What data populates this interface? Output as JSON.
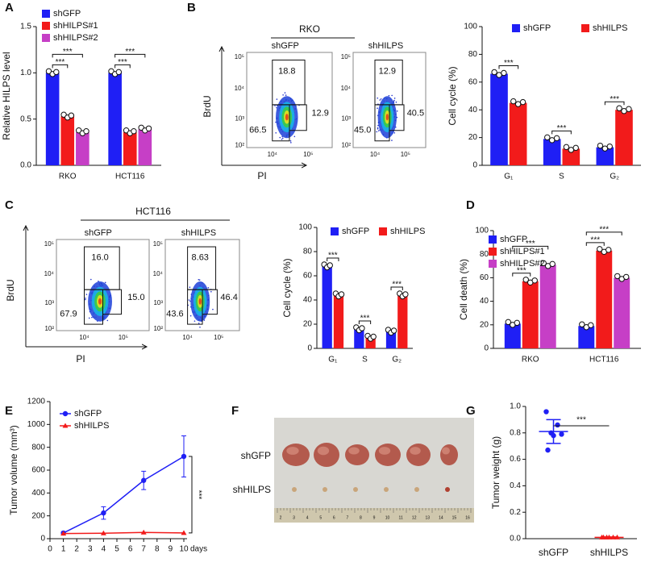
{
  "figure": {
    "panel_labels": [
      "A",
      "B",
      "C",
      "D",
      "E",
      "F",
      "G"
    ],
    "flow": [
      {
        "title": "RKO",
        "ylabel": "BrdU",
        "xlabel": "PI",
        "yticks": [
          "10⁵",
          "10⁴",
          "10³",
          "10²"
        ],
        "xticks": [
          "10⁴",
          "10⁵"
        ],
        "plots": [
          {
            "label": "shGFP",
            "upper": "18.8",
            "right": "12.9",
            "left": "66.5"
          },
          {
            "label": "shHILPS",
            "upper": "12.9",
            "right": "40.5",
            "left": "45.0"
          }
        ]
      },
      {
        "title": "HCT116",
        "ylabel": "BrdU",
        "xlabel": "PI",
        "yticks": [
          "10⁵",
          "10⁴",
          "10³",
          "10²"
        ],
        "xticks": [
          "10⁴",
          "10⁵"
        ],
        "plots": [
          {
            "label": "shGFP",
            "upper": "16.0",
            "right": "15.0",
            "left": "67.9"
          },
          {
            "label": "shHILPS",
            "upper": "8.63",
            "right": "46.4",
            "left": "43.6"
          }
        ]
      }
    ],
    "photo": {
      "labels": [
        "shGFP",
        "shHILPS"
      ],
      "ruler": [
        "2",
        "3",
        "4",
        "5",
        "6",
        "7",
        "8",
        "9",
        "10",
        "11",
        "12",
        "13",
        "14",
        "15",
        "16"
      ]
    }
  },
  "chart_data": [
    {
      "type": "bar",
      "ylabel": "Relative HILPS level",
      "categories": [
        "RKO",
        "HCT116"
      ],
      "series": [
        {
          "name": "shGFP",
          "color": "#1f1ff5",
          "values": [
            1,
            1
          ]
        },
        {
          "name": "shHILPS#1",
          "color": "#f21b1b",
          "values": [
            0.53,
            0.36
          ]
        },
        {
          "name": "shHILPS#2",
          "color": "#c63fc6",
          "values": [
            0.36,
            0.39
          ]
        }
      ],
      "ylim": [
        0,
        1.5
      ],
      "yticks": [
        {
          "value": 0,
          "label": "0.0"
        },
        {
          "value": 0.5,
          "label": "0.5"
        },
        {
          "value": 1,
          "label": "1.0"
        },
        {
          "value": 1.5,
          "label": "1.5"
        }
      ],
      "legend": "upper left",
      "comparisons": [
        {
          "category": 0,
          "from": 0,
          "to": 1,
          "label": "***"
        },
        {
          "category": 0,
          "from": 0,
          "to": 2,
          "label": "***"
        },
        {
          "category": 1,
          "from": 0,
          "to": 1,
          "label": "***"
        },
        {
          "category": 1,
          "from": 0,
          "to": 2,
          "label": "***"
        }
      ]
    },
    {
      "type": "bar",
      "ylabel": "Cell cycle (%)",
      "categories": [
        "G₁",
        "S",
        "G₂"
      ],
      "series": [
        {
          "name": "shGFP",
          "color": "#1f1ff5",
          "values": [
            66,
            19,
            13
          ]
        },
        {
          "name": "shHILPS",
          "color": "#f21b1b",
          "values": [
            45,
            12,
            40
          ]
        }
      ],
      "ylim": [
        0,
        100
      ],
      "yticks": [
        0,
        20,
        40,
        60,
        80,
        100
      ],
      "legend": "top",
      "comparisons": [
        {
          "category": 0,
          "from": 0,
          "to": 1,
          "label": "***"
        },
        {
          "category": 1,
          "from": 0,
          "to": 1,
          "label": "***"
        },
        {
          "category": 2,
          "from": 0,
          "to": 1,
          "label": "***"
        }
      ]
    },
    {
      "type": "bar",
      "ylabel": "Cell cycle (%)",
      "categories": [
        "G₁",
        "S",
        "G₂"
      ],
      "series": [
        {
          "name": "shGFP",
          "color": "#1f1ff5",
          "values": [
            68,
            16,
            14
          ]
        },
        {
          "name": "shHILPS",
          "color": "#f21b1b",
          "values": [
            44,
            9,
            44
          ]
        }
      ],
      "ylim": [
        0,
        100
      ],
      "yticks": [
        0,
        20,
        40,
        60,
        80,
        100
      ],
      "legend": "top",
      "comparisons": [
        {
          "category": 0,
          "from": 0,
          "to": 1,
          "label": "***"
        },
        {
          "category": 1,
          "from": 0,
          "to": 1,
          "label": "***"
        },
        {
          "category": 2,
          "from": 0,
          "to": 1,
          "label": "***"
        }
      ]
    },
    {
      "type": "bar",
      "ylabel": "Cell death (%)",
      "categories": [
        "RKO",
        "HCT116"
      ],
      "series": [
        {
          "name": "shGFP",
          "color": "#1f1ff5",
          "values": [
            21,
            19
          ]
        },
        {
          "name": "shHILPS#1",
          "color": "#f21b1b",
          "values": [
            57,
            83
          ]
        },
        {
          "name": "shHILPS#2",
          "color": "#c63fc6",
          "values": [
            71,
            60
          ]
        }
      ],
      "ylim": [
        0,
        100
      ],
      "yticks": [
        0,
        20,
        40,
        60,
        80,
        100
      ],
      "legend": "upper left",
      "comparisons": [
        {
          "category": 0,
          "from": 0,
          "to": 1,
          "label": "***"
        },
        {
          "category": 0,
          "from": 0,
          "to": 2,
          "label": "***"
        },
        {
          "category": 1,
          "from": 0,
          "to": 1,
          "label": "***"
        },
        {
          "category": 1,
          "from": 0,
          "to": 2,
          "label": "***"
        }
      ]
    },
    {
      "type": "line",
      "ylabel": "Tumor volume (mm³)",
      "xlabel": "days",
      "x": [
        1,
        4,
        7,
        10
      ],
      "series": [
        {
          "name": "shGFP",
          "color": "#1f1ff5",
          "marker": "circle",
          "values": [
            50,
            225,
            510,
            720
          ],
          "errors": [
            8,
            55,
            80,
            180
          ]
        },
        {
          "name": "shHILPS",
          "color": "#f21b1b",
          "marker": "triangle",
          "values": [
            45,
            48,
            55,
            50
          ]
        }
      ],
      "xlim": [
        0,
        10
      ],
      "xticks": [
        0,
        1,
        2,
        3,
        4,
        5,
        6,
        7,
        8,
        9,
        10
      ],
      "ylim": [
        0,
        1200
      ],
      "yticks": [
        0,
        200,
        400,
        600,
        800,
        1000,
        1200
      ],
      "legend": "upper left",
      "annotation": "***"
    },
    {
      "type": "dot",
      "ylabel": "Tumor weight (g)",
      "categories": [
        "shGFP",
        "shHILPS"
      ],
      "groups": [
        {
          "color": "#1f1ff5",
          "marker": "circle",
          "values": [
            0.96,
            0.86,
            0.8,
            0.79,
            0.78,
            0.67
          ],
          "mean": 0.81,
          "sd": 0.09
        },
        {
          "color": "#f21b1b",
          "marker": "triangle",
          "values": [
            0.01,
            0.01,
            0.01,
            0.01,
            0.01,
            0.01
          ],
          "mean": 0.01,
          "sd": 0.003
        }
      ],
      "ylim": [
        0,
        1
      ],
      "yticks": [
        {
          "value": 0,
          "label": "0.0"
        },
        {
          "value": 0.2,
          "label": "0.2"
        },
        {
          "value": 0.4,
          "label": "0.4"
        },
        {
          "value": 0.6,
          "label": "0.6"
        },
        {
          "value": 0.8,
          "label": "0.8"
        },
        {
          "value": 1,
          "label": "1.0"
        }
      ],
      "comparison_label": "***"
    }
  ]
}
